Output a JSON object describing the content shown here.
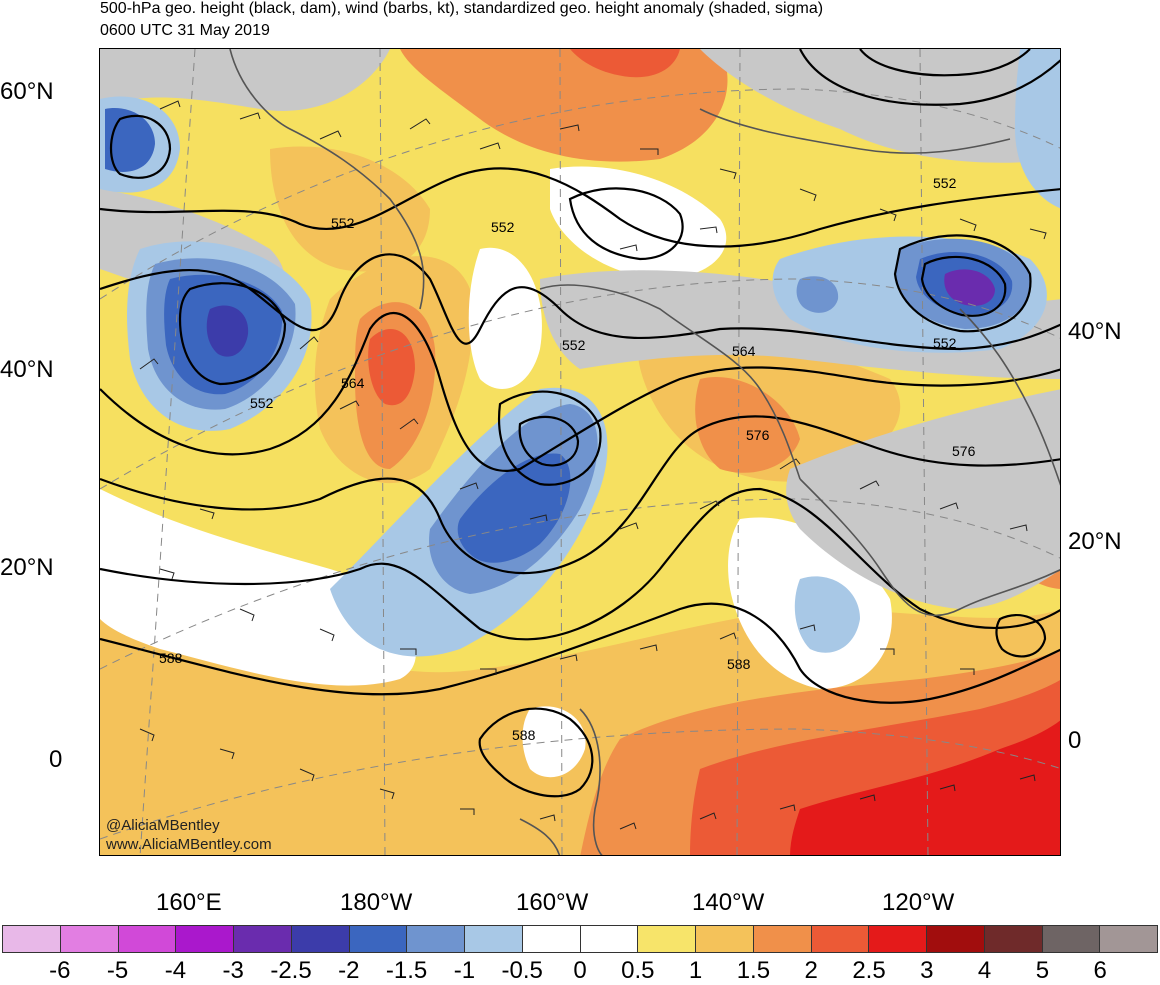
{
  "title_line1": "500-hPa geo. height (black, dam), wind (barbs, kt), standardized geo. height anomaly (shaded, sigma)",
  "title_line2": "0600 UTC 31 May 2019",
  "lat_labels_left": [
    "60°N",
    "40°N",
    "20°N",
    "0"
  ],
  "lat_labels_right": [
    "40°N",
    "20°N",
    "0"
  ],
  "lon_labels": [
    "160°E",
    "180°W",
    "160°W",
    "140°W",
    "120°W"
  ],
  "contour_labels": [
    "552",
    "552",
    "552",
    "552",
    "552",
    "552",
    "564",
    "564",
    "576",
    "576",
    "588",
    "588",
    "588"
  ],
  "credit_handle": "@AliciaMBentley",
  "credit_url": "www.AliciaMBentley.com",
  "colorbar": {
    "labels": [
      "-6",
      "-5",
      "-4",
      "-3",
      "-2.5",
      "-2",
      "-1.5",
      "-1",
      "-0.5",
      "0",
      "0.5",
      "1",
      "1.5",
      "2",
      "2.5",
      "3",
      "4",
      "5",
      "6"
    ],
    "colors": [
      "#e8b8e8",
      "#e27ee2",
      "#d149d8",
      "#aa18cc",
      "#6a2cae",
      "#3c3caa",
      "#3b66bf",
      "#6f94cf",
      "#a8c8e6",
      "#ffffff",
      "#ffffff",
      "#f7e46a",
      "#f4c25a",
      "#f0904a",
      "#ec5a36",
      "#e41a1a",
      "#a10d0d",
      "#6f2a2a",
      "#6e6464",
      "#a29696"
    ]
  }
}
